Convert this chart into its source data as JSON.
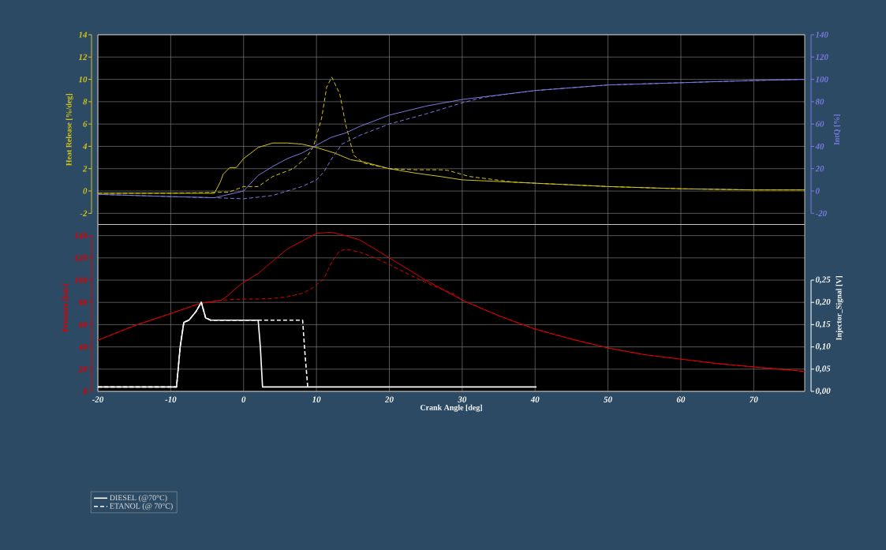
{
  "chart_data": [
    {
      "type": "line",
      "ylabel": "Heat Release [%/deg]",
      "y2label": "IntQ [%]",
      "xlim": [
        -20,
        77
      ],
      "xticks": [
        -20,
        -10,
        0,
        10,
        20,
        30,
        40,
        50,
        60,
        70
      ],
      "ylim": [
        -3,
        14
      ],
      "yticks": [
        -2,
        0,
        2,
        4,
        6,
        8,
        10,
        12,
        14
      ],
      "y2lim": [
        -30,
        140
      ],
      "y2ticks": [
        -20,
        0,
        20,
        40,
        60,
        80,
        100,
        120,
        140
      ],
      "grid": true,
      "tick_labels": "y",
      "series": [
        {
          "color": "#d4c41a",
          "line_style": "solid",
          "x": [
            -20,
            -10,
            -4,
            -3.2,
            -2.8,
            -1.9,
            -1,
            0,
            2,
            4,
            6,
            8,
            10,
            12.5,
            14.7,
            16.5,
            20,
            23.6,
            27,
            30,
            40,
            50,
            60,
            70,
            77
          ],
          "values": [
            -0.2,
            -0.2,
            -0.2,
            0.8,
            1.5,
            2.1,
            2.1,
            2.9,
            3.9,
            4.3,
            4.3,
            4.2,
            3.9,
            3.4,
            2.8,
            2.6,
            2.0,
            1.6,
            1.3,
            1.0,
            0.7,
            0.4,
            0.2,
            0.1,
            0.1
          ]
        },
        {
          "color": "#d4c41a",
          "line_style": "dashed",
          "x": [
            -20,
            -10,
            -2,
            0,
            2,
            4,
            6.8,
            8.6,
            9.6,
            10.7,
            11.4,
            12.1,
            13.2,
            14,
            15.1,
            16.5,
            20,
            23.6,
            27,
            28,
            31,
            37,
            40,
            50,
            60,
            70,
            77
          ],
          "values": [
            -0.2,
            -0.2,
            -0.1,
            0.4,
            0.4,
            1.3,
            2.0,
            3.0,
            4.0,
            6.5,
            9.3,
            10.2,
            8.7,
            6.0,
            3.2,
            2.5,
            2.0,
            1.9,
            1.9,
            1.85,
            1.3,
            0.8,
            0.7,
            0.4,
            0.2,
            0.1,
            0.1
          ]
        },
        {
          "color": "#7b79e0",
          "line_style": "solid",
          "axis": "y2",
          "x": [
            -20,
            -10,
            -4,
            0,
            2,
            4,
            6,
            8,
            10,
            12,
            14,
            16,
            20,
            25,
            30,
            40,
            50,
            60,
            70,
            77
          ],
          "values": [
            -3,
            -5,
            -6,
            0,
            14,
            22,
            29,
            34,
            41,
            48,
            52,
            58,
            68,
            76,
            82,
            90,
            95,
            97,
            99,
            100
          ]
        },
        {
          "color": "#7b79e0",
          "line_style": "dashed",
          "axis": "y2",
          "x": [
            -20,
            -10,
            -4,
            0,
            4,
            6,
            8,
            10,
            11,
            12,
            13.5,
            16,
            20,
            25,
            30,
            33,
            40,
            50,
            60,
            70,
            77
          ],
          "values": [
            -3,
            -5,
            -6,
            -7,
            -4,
            0,
            4,
            10,
            17,
            28,
            42,
            50,
            60,
            69,
            79,
            84,
            90,
            95,
            97,
            99,
            100
          ]
        }
      ]
    },
    {
      "type": "line",
      "xlabel": "Crank Angle [deg]",
      "ylabel": "Pressure [bar]",
      "y2label": "Injector_Signal [V]",
      "xlim": [
        -20,
        77
      ],
      "xticks": [
        -20,
        -10,
        0,
        10,
        20,
        30,
        40,
        50,
        60,
        70
      ],
      "ylim": [
        0,
        150
      ],
      "yticks": [
        0,
        20,
        40,
        60,
        80,
        100,
        120,
        140
      ],
      "y2lim": [
        0,
        0.375
      ],
      "y2ticks": [
        {
          "value": 0,
          "label": "0,00"
        },
        {
          "value": 0.05,
          "label": "0,05"
        },
        {
          "value": 0.1,
          "label": "0,10"
        },
        {
          "value": 0.15,
          "label": "0,15"
        },
        {
          "value": 0.2,
          "label": "0,20"
        },
        {
          "value": 0.25,
          "label": "0,25"
        }
      ],
      "grid": true,
      "legend": "bottom left",
      "series": [
        {
          "color": "#dd0000",
          "line_style": "solid",
          "x": [
            -20,
            -15,
            -10,
            -6,
            -3,
            -2,
            -1,
            0,
            2,
            4,
            6,
            8,
            10,
            12,
            14,
            16,
            20,
            25,
            30,
            35,
            40,
            45,
            50,
            55,
            60,
            65,
            70,
            77
          ],
          "values": [
            46,
            59,
            70,
            79,
            82,
            87,
            93,
            98,
            106,
            117,
            128,
            135,
            142,
            143,
            140,
            136,
            120,
            100,
            82,
            68,
            56,
            47,
            39,
            33,
            29,
            25,
            22,
            18
          ]
        },
        {
          "color": "#dd0000",
          "line_style": "dashed",
          "x": [
            -20,
            -15,
            -10,
            -6,
            -3,
            0,
            2,
            4,
            6,
            8,
            9.5,
            11,
            12,
            13,
            14,
            16,
            18,
            20,
            23,
            26,
            29,
            30,
            35,
            40,
            45,
            50,
            55,
            60,
            65,
            70,
            77
          ],
          "values": [
            46,
            59,
            70,
            79,
            82,
            83,
            83,
            83.5,
            85,
            88,
            93,
            101,
            115,
            125,
            128,
            125,
            120,
            114,
            104,
            95,
            87,
            82,
            68,
            56,
            47,
            39,
            33,
            29,
            25,
            22,
            18
          ]
        },
        {
          "name": "DIESEL (@70°C)",
          "color": "#ffffff",
          "line_style": "solid",
          "axis": "y2",
          "x": [
            -20,
            -9.2,
            -8.7,
            -8.2,
            -7.5,
            -6.5,
            -5.8,
            -5.2,
            -4.5,
            2.0,
            2.3,
            2.6,
            40.2
          ],
          "values": [
            0.01,
            0.01,
            0.1,
            0.155,
            0.16,
            0.18,
            0.2,
            0.165,
            0.16,
            0.16,
            0.1,
            0.01,
            0.01
          ]
        },
        {
          "name": "ETANOL (@ 70°C)",
          "color": "#ffffff",
          "line_style": "dashed",
          "axis": "y2",
          "x": [
            -20,
            -9.2,
            -8.7,
            -8.2,
            -7.5,
            -6.5,
            -5.8,
            -5.2,
            -4.5,
            2.0,
            8.1,
            8.4,
            8.8
          ],
          "values": [
            0.01,
            0.01,
            0.1,
            0.155,
            0.16,
            0.18,
            0.2,
            0.165,
            0.16,
            0.16,
            0.16,
            0.09,
            0.01
          ]
        }
      ]
    }
  ]
}
